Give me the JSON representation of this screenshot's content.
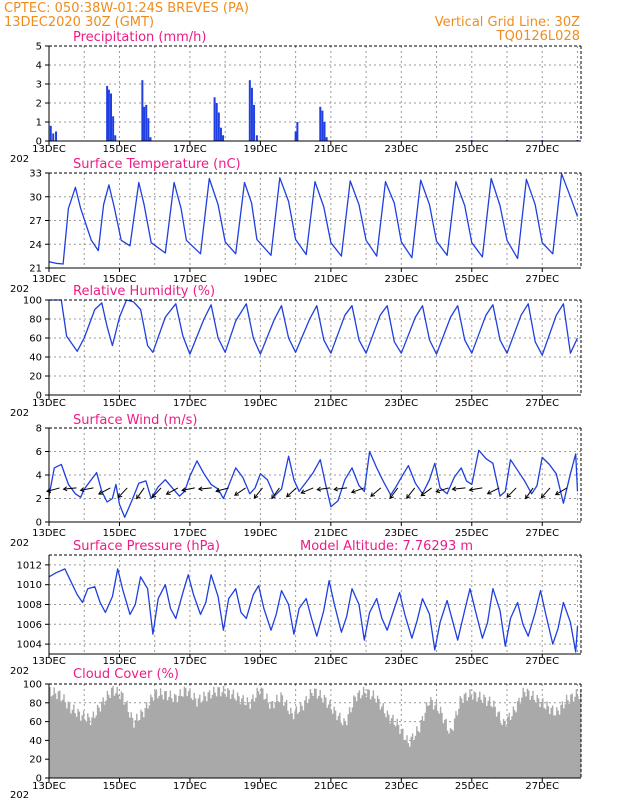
{
  "header": {
    "left_line1": "CPTEC:   050:38W-01:24S   BREVES (PA)",
    "left_line2": "13DEC2020 30Z (GMT)",
    "right_line1": "Vertical Grid Line: 30Z",
    "right_line2": "TQ0126L028"
  },
  "colors": {
    "header": "#f08c1e",
    "title": "#ee1c86",
    "series": "#1f3fe0",
    "cloud": "#a9a9a9",
    "grid": "#9a9a9a"
  },
  "x_axis": {
    "day_start": 13,
    "day_end": 28.1,
    "labels": [
      "13DEC",
      "15DEC",
      "17DEC",
      "19DEC",
      "21DEC",
      "23DEC",
      "25DEC",
      "27DEC"
    ],
    "label_days": [
      13,
      15,
      17,
      19,
      21,
      23,
      25,
      27
    ],
    "gridline_days": [
      14,
      15,
      16,
      17,
      18,
      19,
      20,
      21,
      22,
      23,
      24,
      25,
      26,
      27,
      28
    ],
    "first_label_overlap": "202"
  },
  "chart_data": [
    {
      "id": "precip",
      "type": "bar",
      "title": "Precipitation (mm/h)",
      "ylim": [
        0,
        5
      ],
      "yticks": [
        0,
        1,
        2,
        3,
        4,
        5
      ],
      "x_days": [
        13.05,
        13.12,
        13.2,
        14.65,
        14.7,
        14.76,
        14.82,
        14.88,
        15.65,
        15.7,
        15.76,
        15.82,
        15.88,
        17.7,
        17.76,
        17.82,
        17.88,
        17.94,
        18.7,
        18.76,
        18.82,
        18.9,
        20.0,
        20.05,
        20.7,
        20.76,
        20.82,
        20.88,
        25.0,
        26.0,
        27.0,
        28.0
      ],
      "values": [
        0.8,
        0.4,
        0.5,
        2.9,
        2.7,
        2.5,
        1.3,
        0.3,
        3.2,
        1.8,
        1.9,
        1.2,
        0.2,
        2.3,
        2.0,
        1.5,
        0.7,
        0.3,
        3.2,
        2.8,
        1.9,
        0.3,
        0.5,
        1.0,
        1.8,
        1.6,
        1.0,
        0.2,
        0.05,
        0.05,
        0.05,
        0.05
      ]
    },
    {
      "id": "temp",
      "type": "line",
      "title": "Surface Temperature (nC)",
      "ylim": [
        21,
        33
      ],
      "yticks": [
        21,
        24,
        27,
        30,
        33
      ],
      "days": [
        13.0,
        13.2,
        13.4,
        13.55,
        13.75,
        13.9,
        14.2,
        14.4,
        14.55,
        14.7,
        14.85,
        15.05,
        15.3,
        15.55,
        15.7,
        15.9,
        16.3,
        16.55,
        16.75,
        16.9,
        17.3,
        17.55,
        17.8,
        18.0,
        18.3,
        18.55,
        18.75,
        18.9,
        19.3,
        19.55,
        19.8,
        20.0,
        20.3,
        20.55,
        20.8,
        21.0,
        21.3,
        21.55,
        21.8,
        22.0,
        22.3,
        22.55,
        22.8,
        23.0,
        23.3,
        23.55,
        23.8,
        24.0,
        24.3,
        24.55,
        24.8,
        25.0,
        25.3,
        25.55,
        25.8,
        26.0,
        26.3,
        26.55,
        26.8,
        27.0,
        27.3,
        27.55,
        27.8,
        28.0
      ],
      "values": [
        21.8,
        21.6,
        21.5,
        28.5,
        31.2,
        28.5,
        24.5,
        23.2,
        29.0,
        31.5,
        28.7,
        24.5,
        23.8,
        31.8,
        29.0,
        24.2,
        22.9,
        31.8,
        28.5,
        24.5,
        22.8,
        32.3,
        29.0,
        24.3,
        22.8,
        31.8,
        29.2,
        24.6,
        22.6,
        32.4,
        29.4,
        24.6,
        22.7,
        31.9,
        28.7,
        24.2,
        22.5,
        32.0,
        29.0,
        24.5,
        22.5,
        31.9,
        29.2,
        24.3,
        22.3,
        32.1,
        29.0,
        24.4,
        22.6,
        31.9,
        28.9,
        24.2,
        22.4,
        32.3,
        28.9,
        24.5,
        22.2,
        32.2,
        29.0,
        24.2,
        22.8,
        32.9,
        30.0,
        27.5
      ]
    },
    {
      "id": "rh",
      "type": "line",
      "title": "Relative Humidity (%)",
      "ylim": [
        0,
        100
      ],
      "yticks": [
        0,
        20,
        40,
        60,
        80,
        100
      ],
      "days": [
        13.0,
        13.35,
        13.5,
        13.8,
        14.0,
        14.3,
        14.5,
        14.65,
        14.8,
        15.0,
        15.2,
        15.4,
        15.6,
        15.8,
        15.95,
        16.3,
        16.6,
        16.8,
        17.0,
        17.4,
        17.6,
        17.8,
        18.0,
        18.3,
        18.6,
        18.8,
        19.0,
        19.4,
        19.6,
        19.8,
        20.0,
        20.4,
        20.6,
        20.8,
        21.0,
        21.4,
        21.6,
        21.8,
        22.0,
        22.4,
        22.6,
        22.8,
        23.0,
        23.4,
        23.6,
        23.8,
        24.0,
        24.4,
        24.6,
        24.8,
        25.0,
        25.4,
        25.6,
        25.8,
        26.0,
        26.4,
        26.6,
        26.8,
        27.0,
        27.4,
        27.6,
        27.8,
        28.0
      ],
      "values": [
        100,
        100,
        62,
        46,
        60,
        90,
        97,
        72,
        52,
        82,
        100,
        98,
        90,
        52,
        45,
        82,
        96,
        62,
        43,
        80,
        95,
        60,
        45,
        78,
        96,
        60,
        43,
        80,
        94,
        60,
        45,
        80,
        94,
        58,
        44,
        84,
        94,
        58,
        44,
        84,
        94,
        56,
        44,
        82,
        94,
        58,
        43,
        82,
        94,
        58,
        44,
        84,
        95,
        58,
        44,
        84,
        96,
        56,
        42,
        84,
        96,
        44,
        60
      ]
    },
    {
      "id": "wind",
      "type": "line",
      "title": "Surface Wind (m/s)",
      "ylim": [
        0,
        8
      ],
      "yticks": [
        0,
        2,
        4,
        6,
        8
      ],
      "days": [
        13.0,
        13.15,
        13.35,
        13.55,
        13.75,
        13.9,
        14.0,
        14.2,
        14.35,
        14.5,
        14.65,
        14.8,
        14.9,
        15.0,
        15.15,
        15.35,
        15.55,
        15.75,
        15.9,
        16.1,
        16.3,
        16.5,
        16.7,
        16.85,
        17.0,
        17.2,
        17.4,
        17.6,
        17.8,
        17.95,
        18.1,
        18.3,
        18.5,
        18.7,
        18.85,
        19.0,
        19.2,
        19.4,
        19.6,
        19.8,
        19.95,
        20.1,
        20.3,
        20.5,
        20.7,
        20.85,
        21.0,
        21.2,
        21.4,
        21.6,
        21.8,
        21.95,
        22.1,
        22.3,
        22.5,
        22.7,
        22.85,
        23.0,
        23.2,
        23.4,
        23.6,
        23.8,
        23.95,
        24.1,
        24.3,
        24.5,
        24.7,
        24.85,
        25.0,
        25.2,
        25.4,
        25.6,
        25.8,
        25.95,
        26.1,
        26.3,
        26.5,
        26.7,
        26.85,
        27.0,
        27.2,
        27.4,
        27.6,
        27.8,
        27.95,
        28.0
      ],
      "values": [
        2.2,
        4.6,
        4.9,
        3.2,
        2.4,
        2.1,
        2.8,
        3.6,
        4.2,
        2.6,
        1.7,
        2.0,
        3.2,
        1.5,
        0.4,
        1.8,
        3.3,
        3.5,
        2.0,
        3.0,
        3.6,
        2.9,
        2.2,
        2.6,
        3.9,
        5.2,
        4.1,
        3.2,
        2.8,
        2.0,
        3.1,
        4.6,
        3.8,
        2.4,
        2.9,
        4.1,
        3.6,
        2.2,
        2.8,
        5.6,
        3.6,
        2.6,
        3.4,
        4.2,
        5.3,
        3.2,
        1.3,
        1.8,
        3.6,
        4.6,
        3.1,
        2.6,
        6.0,
        4.6,
        3.4,
        2.3,
        3.0,
        3.8,
        4.8,
        3.3,
        2.4,
        3.6,
        5.0,
        2.9,
        2.4,
        3.8,
        4.6,
        3.5,
        3.2,
        6.1,
        5.4,
        5.0,
        2.2,
        2.6,
        5.3,
        4.4,
        3.5,
        2.4,
        3.1,
        5.5,
        4.9,
        4.1,
        1.6,
        4.1,
        5.8,
        2.6
      ]
    },
    {
      "id": "pressure",
      "type": "line",
      "title": "Surface Pressure (hPa)",
      "title2": "Model Altitude: 7.76293 m",
      "ylim": [
        1003,
        1013
      ],
      "yticks": [
        1004,
        1006,
        1008,
        1010,
        1012
      ],
      "days": [
        13.0,
        13.2,
        13.45,
        13.6,
        13.8,
        13.95,
        14.1,
        14.3,
        14.45,
        14.6,
        14.8,
        14.95,
        15.1,
        15.3,
        15.45,
        15.6,
        15.8,
        15.95,
        16.1,
        16.3,
        16.45,
        16.6,
        16.8,
        16.95,
        17.1,
        17.3,
        17.45,
        17.6,
        17.8,
        17.95,
        18.1,
        18.3,
        18.45,
        18.6,
        18.8,
        18.95,
        19.1,
        19.3,
        19.45,
        19.6,
        19.8,
        19.95,
        20.1,
        20.3,
        20.45,
        20.6,
        20.8,
        20.95,
        21.1,
        21.3,
        21.45,
        21.6,
        21.8,
        21.95,
        22.1,
        22.3,
        22.45,
        22.6,
        22.8,
        22.95,
        23.1,
        23.3,
        23.45,
        23.6,
        23.8,
        23.95,
        24.1,
        24.3,
        24.45,
        24.6,
        24.8,
        24.95,
        25.1,
        25.3,
        25.45,
        25.6,
        25.8,
        25.95,
        26.1,
        26.3,
        26.45,
        26.6,
        26.8,
        26.95,
        27.1,
        27.3,
        27.45,
        27.6,
        27.8,
        27.95,
        28.0
      ],
      "values": [
        1010.8,
        1011.2,
        1011.6,
        1010.5,
        1009.0,
        1008.2,
        1009.6,
        1009.8,
        1008.2,
        1007.2,
        1008.8,
        1011.6,
        1009.4,
        1007.0,
        1008.0,
        1010.8,
        1009.6,
        1005.0,
        1008.6,
        1010.0,
        1007.6,
        1006.6,
        1009.2,
        1011.0,
        1009.0,
        1007.0,
        1008.2,
        1011.0,
        1008.8,
        1005.4,
        1008.6,
        1009.6,
        1007.2,
        1006.6,
        1009.0,
        1009.9,
        1007.6,
        1005.4,
        1007.0,
        1009.4,
        1008.0,
        1005.0,
        1007.6,
        1008.6,
        1006.6,
        1004.8,
        1007.4,
        1010.4,
        1008.0,
        1005.2,
        1006.8,
        1009.6,
        1008.0,
        1004.4,
        1007.2,
        1008.6,
        1006.6,
        1005.4,
        1007.6,
        1009.2,
        1007.0,
        1004.6,
        1006.4,
        1008.6,
        1007.0,
        1003.4,
        1006.2,
        1008.4,
        1006.4,
        1004.4,
        1007.4,
        1009.6,
        1007.4,
        1004.6,
        1006.2,
        1009.6,
        1007.4,
        1003.8,
        1006.6,
        1008.2,
        1006.0,
        1004.8,
        1007.2,
        1009.4,
        1007.0,
        1004.0,
        1005.6,
        1008.2,
        1006.2,
        1003.2,
        1005.8
      ]
    },
    {
      "id": "cloud",
      "type": "area",
      "title": "Cloud Cover (%)",
      "ylim": [
        0,
        100
      ],
      "yticks": [
        0,
        20,
        40,
        60,
        80,
        100
      ],
      "days": [
        13.0,
        13.3,
        13.6,
        13.9,
        14.2,
        14.5,
        14.8,
        15.1,
        15.4,
        15.7,
        16.0,
        16.3,
        16.6,
        16.9,
        17.2,
        17.5,
        17.8,
        18.1,
        18.4,
        18.7,
        19.0,
        19.3,
        19.6,
        19.9,
        20.2,
        20.5,
        20.8,
        21.1,
        21.4,
        21.7,
        22.0,
        22.3,
        22.6,
        22.9,
        23.2,
        23.5,
        23.8,
        24.1,
        24.4,
        24.7,
        25.0,
        25.3,
        25.6,
        25.9,
        26.2,
        26.5,
        26.8,
        27.1,
        27.4,
        27.7,
        28.0
      ],
      "values": [
        95,
        92,
        78,
        70,
        65,
        82,
        97,
        90,
        62,
        74,
        93,
        92,
        88,
        97,
        85,
        91,
        96,
        94,
        88,
        82,
        98,
        80,
        90,
        70,
        80,
        96,
        88,
        74,
        60,
        90,
        95,
        88,
        70,
        60,
        40,
        55,
        86,
        75,
        50,
        88,
        92,
        88,
        82,
        60,
        74,
        96,
        88,
        80,
        72,
        86,
        92
      ]
    }
  ]
}
